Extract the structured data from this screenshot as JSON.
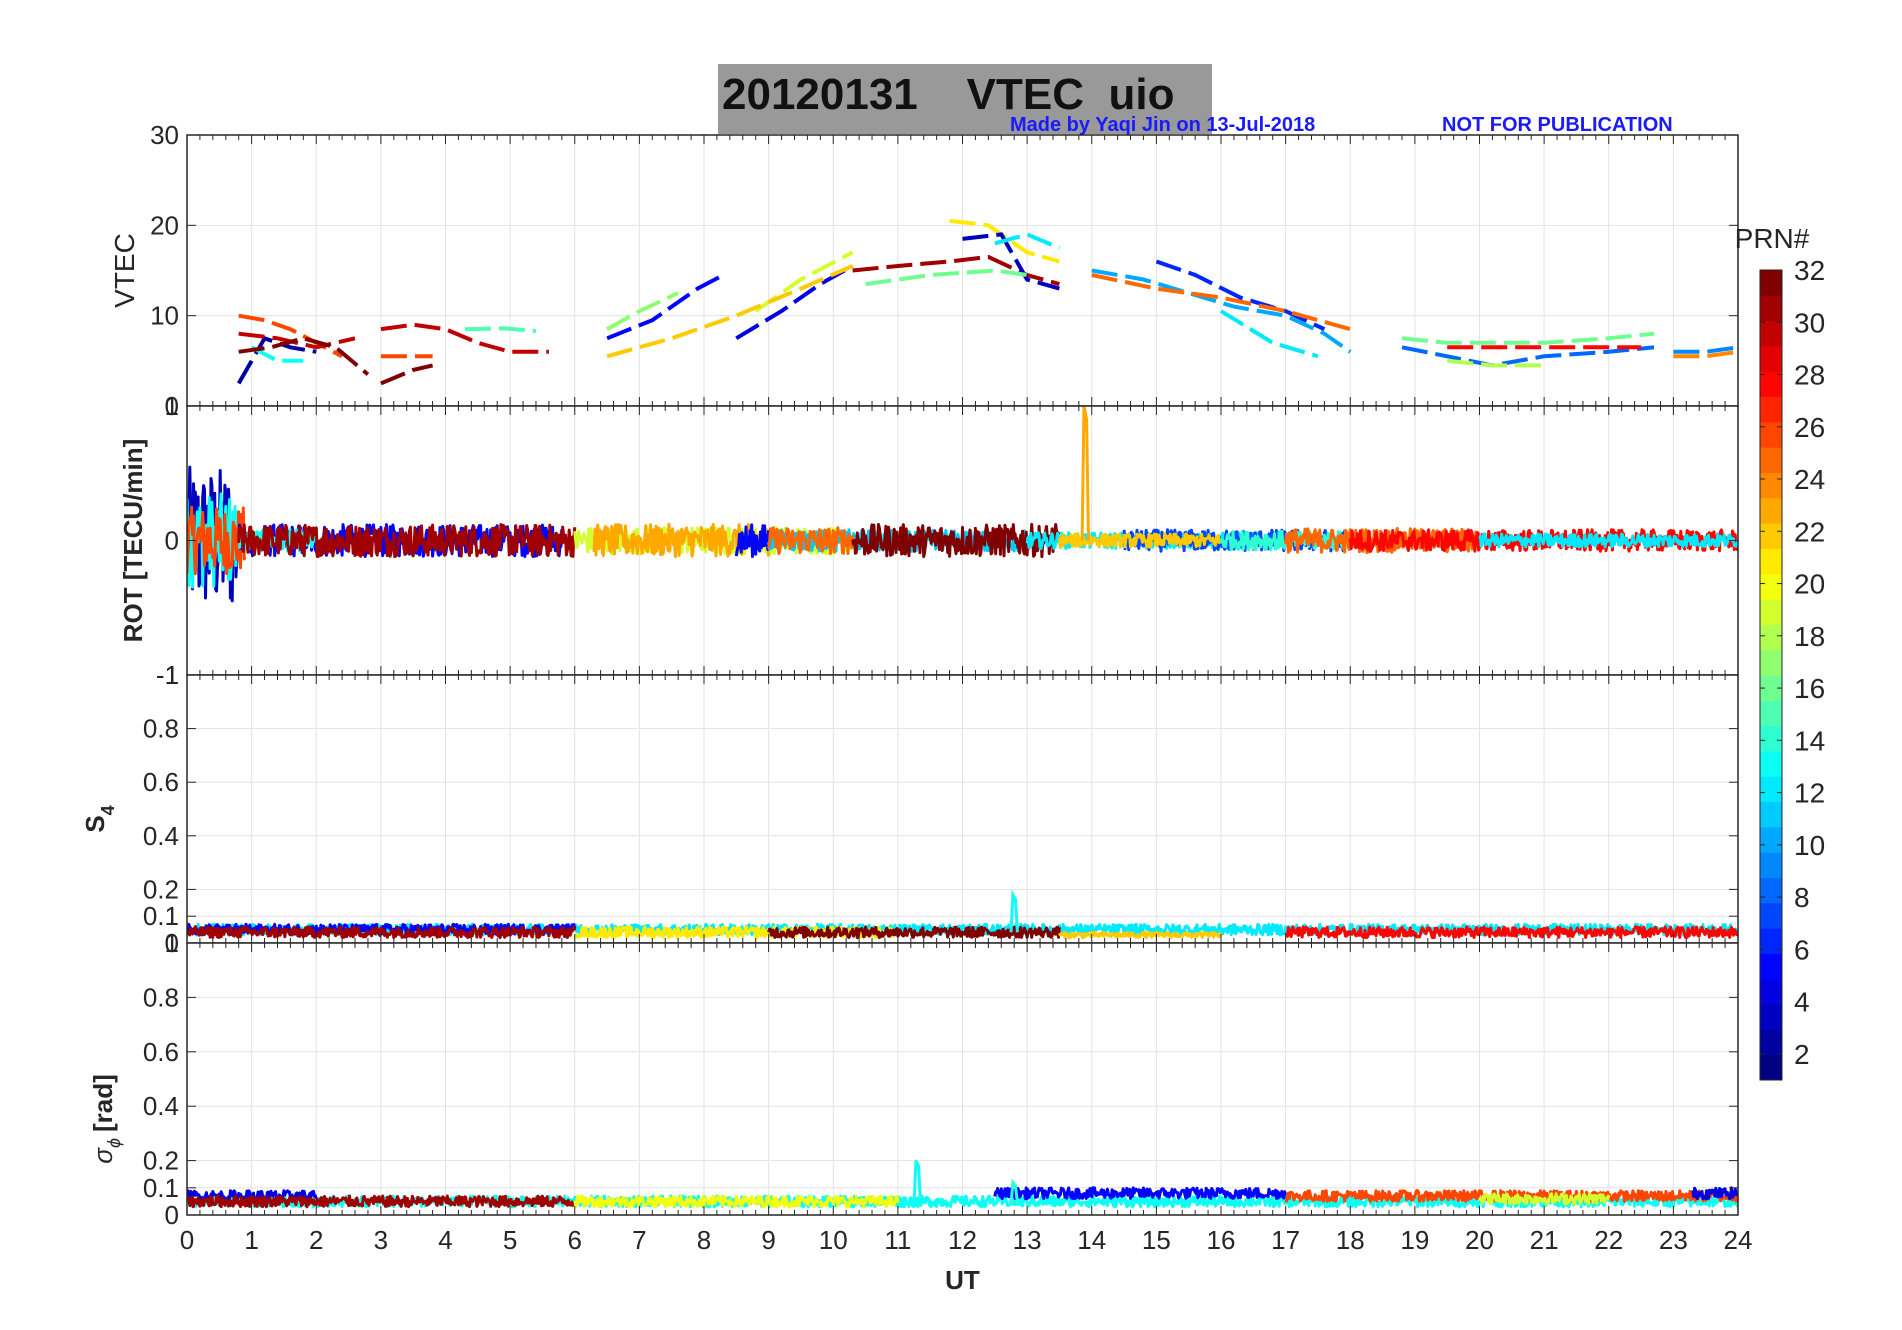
{
  "header": {
    "title": "20120131    VTEC  uio",
    "credit_made_by": "Made by Yaqi Jin on 13-Jul-2018",
    "credit_notice": "NOT FOR PUBLICATION",
    "title_box_color": "#999999",
    "credit_color": "#1a1aff"
  },
  "chart_data": [
    {
      "type": "line",
      "panel": "vtec",
      "ylabel": "VTEC",
      "ylim": [
        0,
        30
      ],
      "yticks": [
        "0",
        "10",
        "20",
        "30"
      ],
      "xlim": [
        0,
        24
      ],
      "grid": true,
      "series": [
        {
          "prn": 2,
          "x": [
            0.8,
            1.2,
            1.6,
            2.0
          ],
          "y": [
            2.5,
            7.5,
            6.5,
            6.0
          ]
        },
        {
          "prn": 5,
          "x": [
            6.5,
            7.2,
            7.9,
            8.3
          ],
          "y": [
            7.5,
            9.5,
            13.0,
            14.5
          ]
        },
        {
          "prn": 4,
          "x": [
            8.5,
            9.2,
            9.8,
            10.3
          ],
          "y": [
            7.5,
            10.5,
            13.5,
            15.5
          ]
        },
        {
          "prn": 13,
          "x": [
            1.0,
            1.4,
            1.8
          ],
          "y": [
            6.5,
            5.0,
            5.0
          ]
        },
        {
          "prn": 15,
          "x": [
            4.3,
            4.9,
            5.4
          ],
          "y": [
            8.5,
            8.6,
            8.3
          ]
        },
        {
          "prn": 17,
          "x": [
            6.5,
            7.0,
            7.6
          ],
          "y": [
            8.5,
            10.5,
            12.5
          ]
        },
        {
          "prn": 19,
          "x": [
            8.8,
            9.5,
            10.3
          ],
          "y": [
            10.5,
            14.0,
            17.0
          ]
        },
        {
          "prn": 22,
          "x": [
            6.5,
            7.5,
            8.5,
            9.5,
            10.3
          ],
          "y": [
            5.5,
            7.5,
            10.0,
            13.0,
            15.5
          ]
        },
        {
          "prn": 21,
          "x": [
            11.8,
            12.4,
            13.0,
            13.5
          ],
          "y": [
            20.5,
            20.0,
            17.0,
            16.0
          ]
        },
        {
          "prn": 31,
          "x": [
            10.3,
            11.0,
            11.8,
            12.4,
            13.0,
            13.5
          ],
          "y": [
            15.0,
            15.5,
            16.0,
            16.5,
            14.5,
            13.5
          ]
        },
        {
          "prn": 3,
          "x": [
            12.0,
            12.6,
            13.0,
            13.5
          ],
          "y": [
            18.5,
            19.0,
            14.0,
            13.0
          ]
        },
        {
          "prn": 12,
          "x": [
            12.5,
            13.0,
            13.5
          ],
          "y": [
            18.0,
            19.0,
            17.5
          ]
        },
        {
          "prn": 16,
          "x": [
            10.5,
            11.5,
            12.5,
            13.0
          ],
          "y": [
            13.5,
            14.5,
            15.0,
            14.5
          ]
        },
        {
          "prn": 10,
          "x": [
            14.0,
            14.8,
            15.5,
            16.2,
            17.0,
            17.6,
            18.0
          ],
          "y": [
            15.0,
            14.0,
            12.5,
            11.0,
            10.0,
            8.0,
            6.0
          ]
        },
        {
          "prn": 6,
          "x": [
            15.0,
            15.6,
            16.3,
            17.0,
            17.6
          ],
          "y": [
            16.0,
            14.5,
            12.0,
            10.5,
            8.5
          ]
        },
        {
          "prn": 25,
          "x": [
            14.0,
            15.0,
            16.0,
            17.0,
            18.0
          ],
          "y": [
            14.5,
            13.0,
            12.0,
            10.5,
            8.5
          ]
        },
        {
          "prn": 12,
          "x": [
            16.0,
            16.8,
            17.5
          ],
          "y": [
            10.5,
            7.0,
            5.5
          ]
        },
        {
          "prn": 26,
          "x": [
            0.8,
            1.2,
            1.6,
            2.0,
            2.4
          ],
          "y": [
            10.0,
            9.5,
            8.5,
            7.0,
            5.5
          ]
        },
        {
          "prn": 30,
          "x": [
            0.8,
            1.4,
            2.0,
            2.6
          ],
          "y": [
            8.0,
            7.5,
            6.5,
            7.5
          ]
        },
        {
          "prn": 32,
          "x": [
            0.8,
            1.3,
            1.8,
            2.3,
            2.8
          ],
          "y": [
            6.0,
            6.5,
            7.5,
            6.5,
            3.5
          ]
        },
        {
          "prn": 30,
          "x": [
            3.0,
            3.5,
            4.0,
            4.5,
            5.0,
            5.6
          ],
          "y": [
            8.5,
            9.0,
            8.5,
            7.0,
            6.0,
            6.0
          ]
        },
        {
          "prn": 32,
          "x": [
            3.0,
            3.5,
            3.8
          ],
          "y": [
            2.5,
            4.0,
            4.5
          ]
        },
        {
          "prn": 26,
          "x": [
            3.0,
            3.5,
            3.8
          ],
          "y": [
            5.5,
            5.5,
            5.5
          ]
        },
        {
          "prn": 8,
          "x": [
            18.8,
            19.5,
            20.2,
            21.0,
            22.0,
            22.7
          ],
          "y": [
            6.5,
            5.5,
            4.5,
            5.5,
            6.0,
            6.5
          ]
        },
        {
          "prn": 16,
          "x": [
            18.8,
            19.5,
            20.2,
            21.0,
            22.0,
            22.7
          ],
          "y": [
            7.5,
            7.0,
            7.0,
            7.0,
            7.5,
            8.0
          ]
        },
        {
          "prn": 18,
          "x": [
            19.5,
            20.2,
            21.0
          ],
          "y": [
            5.0,
            4.5,
            4.5
          ]
        },
        {
          "prn": 28,
          "x": [
            19.5,
            20.5,
            21.5,
            22.5
          ],
          "y": [
            6.5,
            6.5,
            6.5,
            6.5
          ]
        },
        {
          "prn": 24,
          "x": [
            23.0,
            23.5,
            24.0
          ],
          "y": [
            5.5,
            5.5,
            6.0
          ]
        },
        {
          "prn": 9,
          "x": [
            23.0,
            23.5,
            24.0
          ],
          "y": [
            6.0,
            6.0,
            6.5
          ]
        }
      ]
    },
    {
      "type": "line",
      "panel": "rot",
      "ylabel": "ROT [TECU/min]",
      "ylim": [
        -1,
        1
      ],
      "yticks": [
        "-1",
        "0",
        "1"
      ],
      "xlim": [
        0,
        24
      ],
      "grid": true,
      "noise_bands": [
        {
          "prn": 3,
          "x0": 0.0,
          "x1": 0.8,
          "amp": 0.55
        },
        {
          "prn": 13,
          "x0": 0.0,
          "x1": 0.8,
          "amp": 0.35
        },
        {
          "prn": 26,
          "x0": 0.0,
          "x1": 0.9,
          "amp": 0.25
        },
        {
          "prn": 5,
          "x0": 0.8,
          "x1": 5.8,
          "amp": 0.12
        },
        {
          "prn": 13,
          "x0": 0.8,
          "x1": 2.0,
          "amp": 0.08
        },
        {
          "prn": 31,
          "x0": 0.8,
          "x1": 6.0,
          "amp": 0.12
        },
        {
          "prn": 19,
          "x0": 6.0,
          "x1": 10.3,
          "amp": 0.1
        },
        {
          "prn": 23,
          "x0": 6.3,
          "x1": 9.0,
          "amp": 0.12
        },
        {
          "prn": 5,
          "x0": 8.5,
          "x1": 9.0,
          "amp": 0.12
        },
        {
          "prn": 11,
          "x0": 9.0,
          "x1": 13.0,
          "amp": 0.08
        },
        {
          "prn": 25,
          "x0": 9.0,
          "x1": 10.3,
          "amp": 0.1
        },
        {
          "prn": 32,
          "x0": 10.3,
          "x1": 13.5,
          "amp": 0.12
        },
        {
          "prn": 12,
          "x0": 13.0,
          "x1": 17.0,
          "amp": 0.06
        },
        {
          "prn": 7,
          "x0": 14.5,
          "x1": 18.0,
          "amp": 0.08
        },
        {
          "prn": 22,
          "x0": 13.5,
          "x1": 16.0,
          "amp": 0.05
        },
        {
          "prn": 14,
          "x0": 16.0,
          "x1": 18.0,
          "amp": 0.07
        },
        {
          "prn": 25,
          "x0": 17.0,
          "x1": 20.0,
          "amp": 0.09
        },
        {
          "prn": 28,
          "x0": 18.0,
          "x1": 24.0,
          "amp": 0.08
        },
        {
          "prn": 12,
          "x0": 20.0,
          "x1": 24.0,
          "amp": 0.05
        }
      ],
      "spikes": [
        {
          "prn": 23,
          "x": 13.9,
          "y": 1.0
        }
      ]
    },
    {
      "type": "line",
      "panel": "s4",
      "ylabel": "S4",
      "ylim": [
        0,
        1
      ],
      "yticks": [
        "0",
        "0.1",
        "0.2",
        "0.4",
        "0.6",
        "0.8",
        "1"
      ],
      "xlim": [
        0,
        24
      ],
      "grid": true,
      "noise_bands": [
        {
          "prn": 12,
          "x0": 0.0,
          "x1": 24.0,
          "base": 0.05,
          "amp": 0.02
        },
        {
          "prn": 5,
          "x0": 0.0,
          "x1": 6.0,
          "base": 0.05,
          "amp": 0.02
        },
        {
          "prn": 21,
          "x0": 6.0,
          "x1": 11.0,
          "base": 0.04,
          "amp": 0.02
        },
        {
          "prn": 31,
          "x0": 0.0,
          "x1": 6.0,
          "base": 0.04,
          "amp": 0.02
        },
        {
          "prn": 32,
          "x0": 9.0,
          "x1": 13.5,
          "base": 0.04,
          "amp": 0.02
        },
        {
          "prn": 28,
          "x0": 17.0,
          "x1": 24.0,
          "base": 0.04,
          "amp": 0.02
        },
        {
          "prn": 22,
          "x0": 13.5,
          "x1": 16.0,
          "base": 0.03,
          "amp": 0.01
        }
      ],
      "spikes": [
        {
          "prn": 13,
          "x": 12.8,
          "y": 0.18
        }
      ]
    },
    {
      "type": "line",
      "panel": "sigma_phi",
      "ylabel": "σ_φ [rad]",
      "ylim": [
        0,
        1
      ],
      "yticks": [
        "0",
        "0.1",
        "0.2",
        "0.4",
        "0.6",
        "0.8",
        "1"
      ],
      "xlim": [
        0,
        24
      ],
      "xlabel": "UT",
      "xticks": [
        "0",
        "1",
        "2",
        "3",
        "4",
        "5",
        "6",
        "7",
        "8",
        "9",
        "10",
        "11",
        "12",
        "13",
        "14",
        "15",
        "16",
        "17",
        "18",
        "19",
        "20",
        "21",
        "22",
        "23",
        "24"
      ],
      "grid": true,
      "noise_bands": [
        {
          "prn": 13,
          "x0": 0.0,
          "x1": 24.0,
          "base": 0.05,
          "amp": 0.02
        },
        {
          "prn": 4,
          "x0": 0.0,
          "x1": 2.0,
          "base": 0.07,
          "amp": 0.02
        },
        {
          "prn": 31,
          "x0": 0.0,
          "x1": 6.0,
          "base": 0.05,
          "amp": 0.02
        },
        {
          "prn": 20,
          "x0": 6.0,
          "x1": 11.0,
          "base": 0.05,
          "amp": 0.02
        },
        {
          "prn": 5,
          "x0": 12.5,
          "x1": 17.0,
          "base": 0.08,
          "amp": 0.02
        },
        {
          "prn": 26,
          "x0": 17.0,
          "x1": 24.0,
          "base": 0.07,
          "amp": 0.02
        },
        {
          "prn": 19,
          "x0": 20.0,
          "x1": 22.0,
          "base": 0.06,
          "amp": 0.02
        },
        {
          "prn": 4,
          "x0": 23.3,
          "x1": 24.0,
          "base": 0.08,
          "amp": 0.02
        }
      ],
      "spikes": [
        {
          "prn": 13,
          "x": 11.3,
          "y": 0.2
        },
        {
          "prn": 14,
          "x": 12.8,
          "y": 0.12
        }
      ]
    }
  ],
  "colorbar": {
    "label": "PRN#",
    "range": [
      1,
      32
    ],
    "ticks": [
      "2",
      "4",
      "6",
      "8",
      "10",
      "12",
      "14",
      "16",
      "18",
      "20",
      "22",
      "24",
      "26",
      "28",
      "30",
      "32"
    ],
    "colormap": "jet"
  },
  "ylabel_s4_main": "S",
  "ylabel_s4_sub": "4",
  "ylabel_sigma_sym": "σ",
  "ylabel_sigma_sub": "ϕ",
  "ylabel_sigma_unit": "[rad]"
}
